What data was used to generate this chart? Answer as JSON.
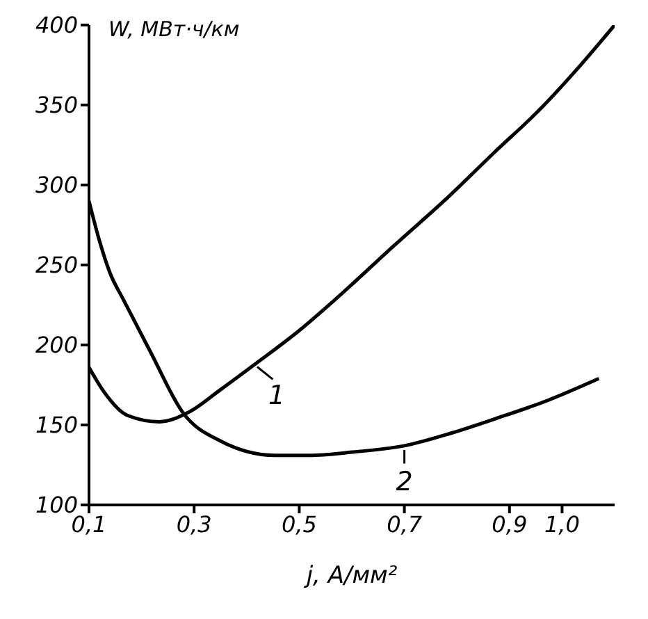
{
  "chart_data": {
    "type": "line",
    "xlabel": "j, А/мм²",
    "ylabel": "W, МВт·ч/км",
    "xlim": [
      0.1,
      1.1
    ],
    "xticks": [
      {
        "value": 0.1,
        "label": "0,1"
      },
      {
        "value": 0.3,
        "label": "0,3"
      },
      {
        "value": 0.5,
        "label": "0,5"
      },
      {
        "value": 0.7,
        "label": "0,7"
      },
      {
        "value": 0.9,
        "label": "0,9"
      },
      {
        "value": 1.0,
        "label": "1,0"
      }
    ],
    "annotations": [
      {
        "text": "1",
        "x": 0.42,
        "y": 189
      },
      {
        "text": "2",
        "x": 0.7,
        "y": 137
      }
    ],
    "ylim": [
      100,
      400
    ],
    "yticks": [
      100,
      150,
      200,
      250,
      300,
      350,
      400
    ],
    "grid": false,
    "legend": false,
    "marker": "none",
    "line_style": "solid",
    "series": [
      {
        "color": "#000000",
        "x": [
          0.1,
          0.13,
          0.173,
          0.234,
          0.29,
          0.35,
          0.42,
          0.5,
          0.567,
          0.68,
          0.785,
          0.87,
          0.96,
          1.03,
          1.1
        ],
        "values": [
          186,
          170,
          156,
          152,
          158,
          172,
          189,
          209,
          228,
          262,
          293,
          320,
          348,
          373,
          400
        ]
      },
      {
        "color": "#000000",
        "x": [
          0.1,
          0.12,
          0.14,
          0.166,
          0.218,
          0.278,
          0.35,
          0.454,
          0.52,
          0.6,
          0.7,
          0.79,
          0.874,
          0.97,
          1.07
        ],
        "values": [
          290,
          265,
          245,
          228,
          195,
          158,
          140,
          131,
          131,
          133,
          137,
          145,
          154,
          165,
          179
        ]
      }
    ]
  }
}
